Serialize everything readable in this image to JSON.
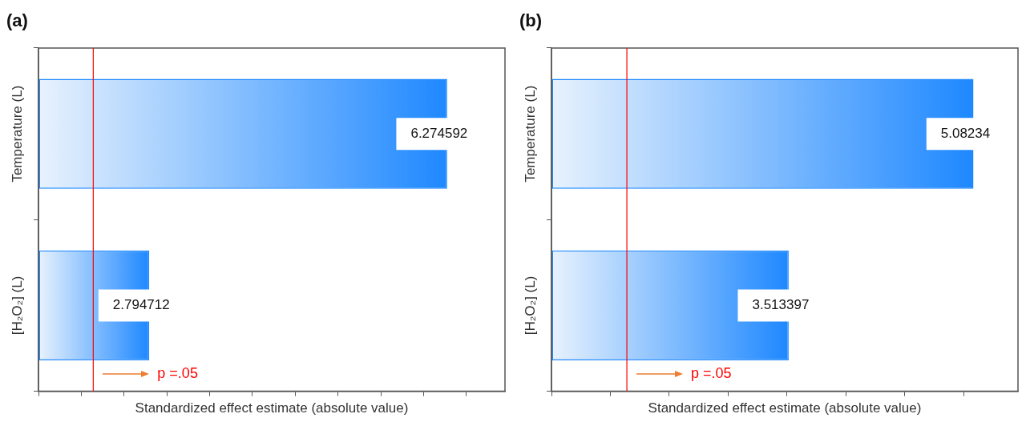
{
  "chart_data": [
    {
      "type": "bar",
      "title": "(a)",
      "orientation": "horizontal",
      "categories": [
        "Temperature (L)",
        "[H₂O₂] (L)"
      ],
      "series": [
        {
          "color": "#1e88ff",
          "values": [
            6.274592,
            2.794712
          ]
        }
      ],
      "data_labels": true,
      "xlabel": "Standardized effect estimate (absolute value)",
      "xlim": [
        1.5,
        6.95
      ],
      "xticks": [
        {
          "value": 1.5,
          "label": null
        },
        {
          "value": 2,
          "label": null
        },
        {
          "value": 2.5,
          "label": null
        },
        {
          "value": 3,
          "label": null
        },
        {
          "value": 3.5,
          "label": null
        },
        {
          "value": 4,
          "label": null
        },
        {
          "value": 4.5,
          "label": null
        },
        {
          "value": 5,
          "label": null
        },
        {
          "value": 5.5,
          "label": null
        },
        {
          "value": 6,
          "label": null
        },
        {
          "value": 6.5,
          "label": null
        }
      ],
      "tick_labels": "y",
      "ref_lines": [
        {
          "axis": "x",
          "value": 2.14,
          "label": "p =.05",
          "color": "#ff0000"
        }
      ]
    },
    {
      "type": "bar",
      "title": "(b)",
      "orientation": "horizontal",
      "categories": [
        "Temperature (L)",
        "[H₂O₂] (L)"
      ],
      "series": [
        {
          "color": "#1e88ff",
          "values": [
            5.08234,
            3.513397
          ]
        }
      ],
      "data_labels": true,
      "xlabel": "Standardized effect estimate (absolute value)",
      "xlim": [
        1.5,
        5.46
      ],
      "xticks": [
        {
          "value": 1.5,
          "label": null
        },
        {
          "value": 2,
          "label": null
        },
        {
          "value": 2.5,
          "label": null
        },
        {
          "value": 3,
          "label": null
        },
        {
          "value": 3.5,
          "label": null
        },
        {
          "value": 4,
          "label": null
        },
        {
          "value": 4.5,
          "label": null
        },
        {
          "value": 5,
          "label": null
        }
      ],
      "tick_labels": "y",
      "ref_lines": [
        {
          "axis": "x",
          "value": 2.14,
          "label": "p =.05",
          "color": "#ff0000"
        }
      ]
    }
  ]
}
